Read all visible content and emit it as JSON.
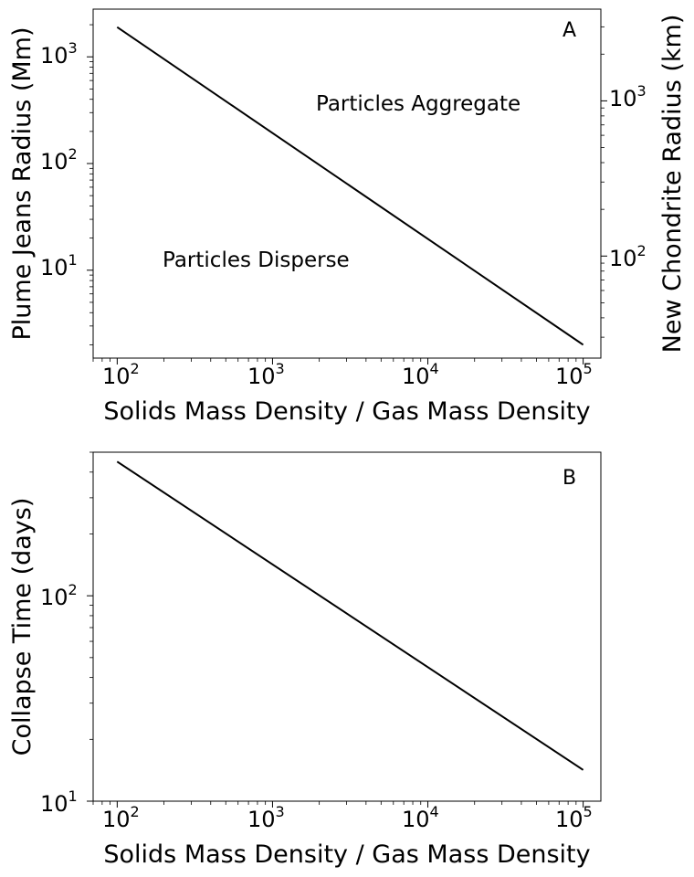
{
  "chart_data": [
    {
      "type": "line",
      "panel_label": "A",
      "xlabel": "Solids Mass Density / Gas Mass Density",
      "ylabel": "Plume Jeans Radius (Mm)",
      "ylabel_right": "New Chondrite Radius (km)",
      "xscale": "log",
      "yscale": "log",
      "xlim": [
        70,
        130000
      ],
      "ylim": [
        1.5,
        2800
      ],
      "ylim_right": [
        22,
        3900
      ],
      "xticks": [
        100,
        1000,
        10000,
        100000
      ],
      "yticks": [
        10,
        100,
        1000
      ],
      "yticks_right": [
        100,
        1000
      ],
      "grid": false,
      "annotations": [
        "Particles Aggregate",
        "Particles Disperse"
      ],
      "series": [
        {
          "x": [
            100,
            100000
          ],
          "y": [
            1900,
            2.0
          ]
        }
      ]
    },
    {
      "type": "line",
      "panel_label": "B",
      "xlabel": "Solids Mass Density / Gas Mass Density",
      "ylabel": "Collapse Time (days)",
      "xscale": "log",
      "yscale": "log",
      "xlim": [
        70,
        130000
      ],
      "ylim": [
        10,
        500
      ],
      "xticks": [
        100,
        1000,
        10000,
        100000
      ],
      "yticks": [
        10,
        100
      ],
      "grid": false,
      "series": [
        {
          "x": [
            100,
            100000
          ],
          "y": [
            450,
            14.2
          ]
        }
      ]
    }
  ],
  "tick_text": {
    "base": "10",
    "x_exponents": [
      "2",
      "3",
      "4",
      "5"
    ],
    "a_y_exponents": [
      "1",
      "2",
      "3"
    ],
    "a_y_right_exponents": [
      "2",
      "3"
    ],
    "b_y_exponents": [
      "1",
      "2"
    ]
  }
}
